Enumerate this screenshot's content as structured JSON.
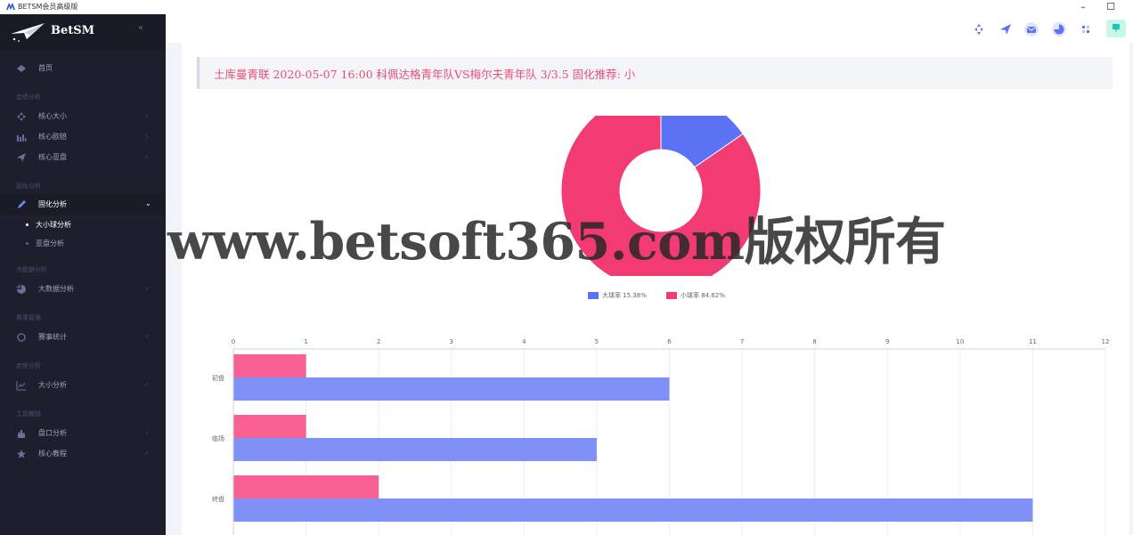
{
  "window": {
    "title": "BETSM会员高级版",
    "minimize": "–",
    "maximize": "☐"
  },
  "sidebar": {
    "brand": "BetSM",
    "collapse": "«",
    "home": "首页",
    "sections": [
      {
        "title": "走绩分析",
        "items": [
          {
            "label": "核心大小",
            "icon": "diamond-arrows-icon"
          },
          {
            "label": "核心欧赔",
            "icon": "chart-icon"
          },
          {
            "label": "核心亚盘",
            "icon": "paper-plane-icon"
          }
        ]
      },
      {
        "title": "固化分析",
        "items": [
          {
            "label": "固化分析",
            "icon": "pen-icon",
            "expanded": true,
            "children": [
              "大小球分析",
              "亚盘分析"
            ]
          }
        ]
      },
      {
        "title": "大数据分析",
        "items": [
          {
            "label": "大数据分析",
            "icon": "pie-icon"
          }
        ]
      },
      {
        "title": "赛事管理",
        "items": [
          {
            "label": "赛事统计",
            "icon": "circle-icon"
          }
        ]
      },
      {
        "title": "走势分析",
        "items": [
          {
            "label": "大小分析",
            "icon": "line-chart-icon"
          }
        ]
      },
      {
        "title": "工具教程",
        "items": [
          {
            "label": "盘口分析",
            "icon": "hand-icon"
          },
          {
            "label": "核心教程",
            "icon": "star-icon"
          }
        ]
      }
    ]
  },
  "headline": "土库曼青联 2020-05-07 16:00 科佩达格青年队VS梅尔夫青年队 3/3.5 固化推荐: 小",
  "colors": {
    "blue": "#5b72f5",
    "pink": "#f23b73",
    "bar_blue": "#7f90f7",
    "bar_pink": "#f76090"
  },
  "chart_data": [
    {
      "type": "pie",
      "hole": true,
      "labels": [
        "大球率",
        "小球率"
      ],
      "values": [
        15.38,
        84.62
      ],
      "legend_text": [
        "大球率 15.38%",
        "小球率 84.62%"
      ],
      "legend": "bottom"
    },
    {
      "type": "bar",
      "orientation": "horizontal",
      "categories": [
        "初盘",
        "临场",
        "终盘"
      ],
      "series": [
        {
          "values": [
            1,
            1,
            2
          ]
        },
        {
          "values": [
            6,
            5,
            11
          ]
        }
      ],
      "xlim": [
        0,
        12
      ],
      "xticks": [
        0,
        1,
        2,
        3,
        4,
        5,
        6,
        7,
        8,
        9,
        10,
        11,
        12
      ],
      "x_axis_position": "top",
      "grid": true
    }
  ],
  "watermark": "www.betsoft365.com版权所有"
}
